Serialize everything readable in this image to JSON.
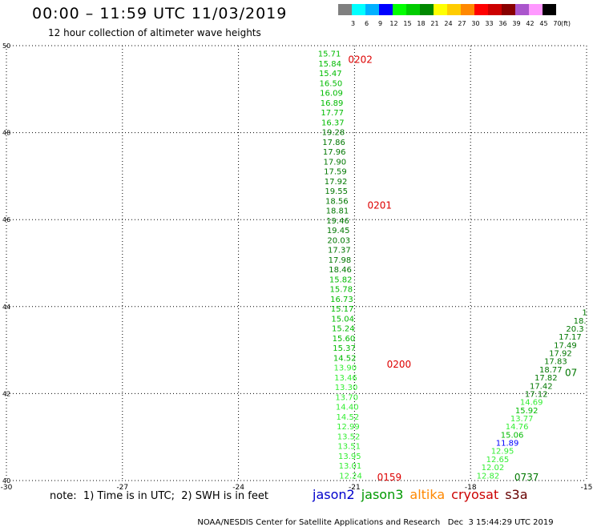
{
  "title": "00:00 – 11:59 UTC 11/03/2019",
  "subtitle": "12 hour collection of altimeter wave heights",
  "color_scale": {
    "unit": "(ft)",
    "bins": [
      {
        "label": "3",
        "color": "#7f7f7f"
      },
      {
        "label": "6",
        "color": "#00ffff"
      },
      {
        "label": "9",
        "color": "#00b0ff"
      },
      {
        "label": "12",
        "color": "#0000ff"
      },
      {
        "label": "15",
        "color": "#00ff00"
      },
      {
        "label": "18",
        "color": "#00cc00"
      },
      {
        "label": "21",
        "color": "#008800"
      },
      {
        "label": "24",
        "color": "#ffff00"
      },
      {
        "label": "27",
        "color": "#ffcc00"
      },
      {
        "label": "30",
        "color": "#ff8800"
      },
      {
        "label": "33",
        "color": "#ff0000"
      },
      {
        "label": "36",
        "color": "#cc0000"
      },
      {
        "label": "39",
        "color": "#880000"
      },
      {
        "label": "42",
        "color": "#aa55cc"
      },
      {
        "label": "45",
        "color": "#ff99ff"
      },
      {
        "label": "70",
        "color": "#000000"
      }
    ]
  },
  "chart_data": {
    "type": "scatter",
    "xlim": [
      -30,
      -15
    ],
    "ylim": [
      40,
      50
    ],
    "x_ticks": [
      {
        "value": -30,
        "label": "-30"
      },
      {
        "value": -27,
        "label": "-27"
      },
      {
        "value": -24,
        "label": "-24"
      },
      {
        "value": -21,
        "label": "-21"
      },
      {
        "value": -18,
        "label": "-18"
      },
      {
        "value": -15,
        "label": "-15"
      }
    ],
    "y_ticks": [
      {
        "value": 40,
        "label": "40"
      },
      {
        "value": 42,
        "label": "42"
      },
      {
        "value": 44,
        "label": "44"
      },
      {
        "value": 46,
        "label": "46"
      },
      {
        "value": 48,
        "label": "48"
      },
      {
        "value": 50,
        "label": "50"
      }
    ],
    "grid": true,
    "tracks": [
      {
        "x_start": -21.65,
        "y_start": 49.75,
        "x_end": -21.1,
        "y_end": 40.05,
        "values": [
          "15.71",
          "15.84",
          "15.47",
          "16.50",
          "16.09",
          "16.89",
          "17.77",
          "16.37",
          "19.28",
          "17.86",
          "17.96",
          "17.90",
          "17.59",
          "17.92",
          "19.55",
          "18.56",
          "18.81",
          "19.46",
          "19.45",
          "20.03",
          "17.37",
          "17.98",
          "18.46",
          "15.82",
          "15.78",
          "16.73",
          "15.17",
          "15.04",
          "15.24",
          "15.60",
          "15.37",
          "14.52",
          "13.90",
          "13.46",
          "13.30",
          "13.70",
          "14.40",
          "14.52",
          "12.99",
          "13.52",
          "13.51",
          "13.95",
          "13.01",
          "12.24"
        ],
        "colors": [
          "#00bb00",
          "#00bb00",
          "#00bb00",
          "#00bb00",
          "#00bb00",
          "#00bb00",
          "#00bb00",
          "#00bb00",
          "#007700",
          "#007700",
          "#007700",
          "#007700",
          "#007700",
          "#007700",
          "#007700",
          "#007700",
          "#007700",
          "#007700",
          "#007700",
          "#007700",
          "#007700",
          "#007700",
          "#007700",
          "#00bb00",
          "#00bb00",
          "#00bb00",
          "#00bb00",
          "#00bb00",
          "#00bb00",
          "#00bb00",
          "#00bb00",
          "#00bb00",
          "#33ee33",
          "#33ee33",
          "#33ee33",
          "#33ee33",
          "#33ee33",
          "#33ee33",
          "#33ee33",
          "#33ee33",
          "#33ee33",
          "#33ee33",
          "#33ee33",
          "#33ee33"
        ]
      },
      {
        "x_start": -17.55,
        "y_start": 40.05,
        "x_end": -15.05,
        "y_end": 43.8,
        "values": [
          "12.82",
          "12.02",
          "12.65",
          "12.95",
          "11.89",
          "15.06",
          "14.76",
          "13.77",
          "15.92",
          "14.69",
          "17.12",
          "17.42",
          "17.82",
          "18.77",
          "17.83",
          "17.92",
          "17.49",
          "17.17",
          "20.3",
          "18.",
          "1"
        ],
        "colors": [
          "#33ee33",
          "#33ee33",
          "#33ee33",
          "#33ee33",
          "#0000ff",
          "#00bb00",
          "#33ee33",
          "#33ee33",
          "#00bb00",
          "#33ee33",
          "#007700",
          "#007700",
          "#007700",
          "#007700",
          "#007700",
          "#007700",
          "#007700",
          "#007700",
          "#007700",
          "#007700",
          "#007700"
        ]
      }
    ],
    "time_labels": [
      {
        "text": "0202",
        "x": -20.85,
        "y": 49.6,
        "color": "#dd0000"
      },
      {
        "text": "0201",
        "x": -20.35,
        "y": 46.25,
        "color": "#dd0000"
      },
      {
        "text": "0200",
        "x": -19.85,
        "y": 42.6,
        "color": "#dd0000"
      },
      {
        "text": "0159",
        "x": -20.1,
        "y": 40.0,
        "color": "#dd0000"
      },
      {
        "text": "0737",
        "x": -16.55,
        "y": 40.0,
        "color": "#007700"
      },
      {
        "text": "07",
        "x": -15.4,
        "y": 42.4,
        "color": "#007700"
      }
    ]
  },
  "note": "note:  1) Time is in UTC;  2) SWH is in feet",
  "satellites": [
    {
      "name": "jason2",
      "color": "#0000cc"
    },
    {
      "name": "jason3",
      "color": "#009900"
    },
    {
      "name": "altika",
      "color": "#ff8800"
    },
    {
      "name": "cryosat",
      "color": "#cc0000"
    },
    {
      "name": "s3a",
      "color": "#660000"
    }
  ],
  "footer": {
    "credit": "NOAA/NESDIS Center for Satellite Applications and Research",
    "timestamp": "Dec  3 15:44:29 UTC 2019"
  }
}
